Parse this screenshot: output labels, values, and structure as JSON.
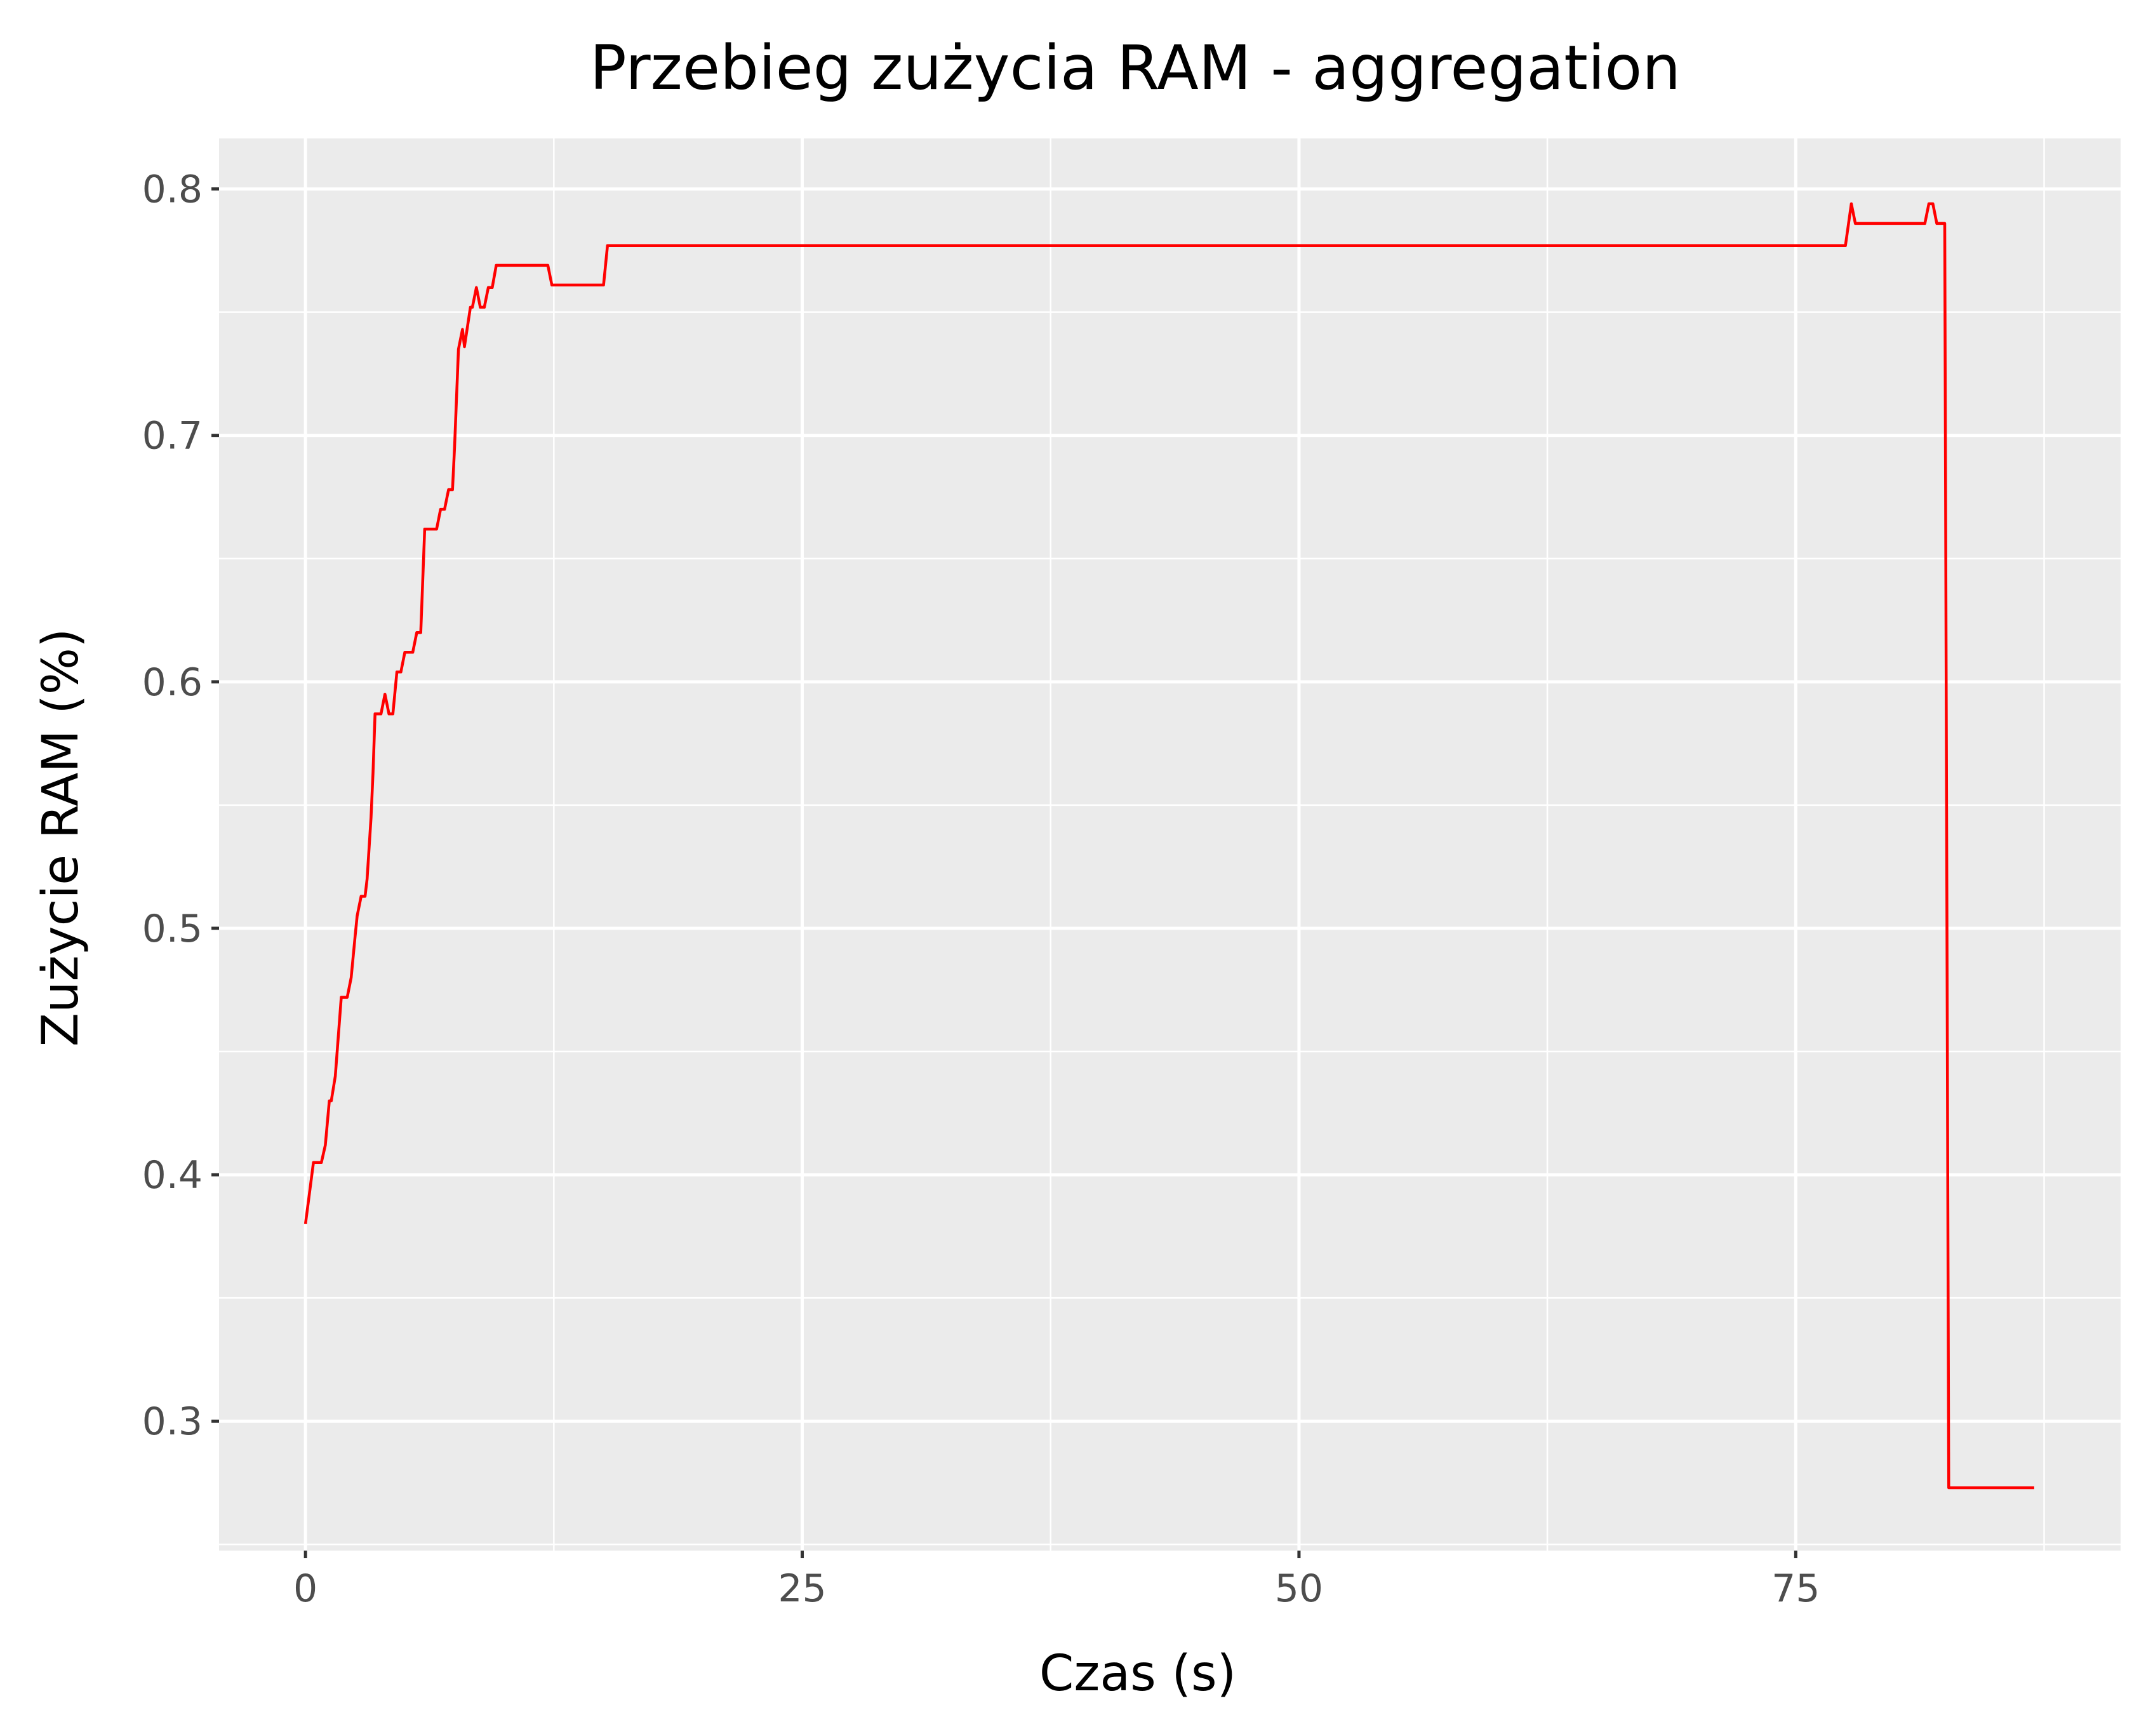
{
  "chart_data": {
    "type": "line",
    "title": "Przebieg zużycia RAM - aggregation",
    "xlabel": "Czas (s)",
    "ylabel": "Zużycie RAM (%)",
    "xlim": [
      -4.35,
      91.35
    ],
    "ylim": [
      0.2475,
      0.8205
    ],
    "x_ticks": [
      0,
      25,
      50,
      75
    ],
    "x_tick_labels": [
      "0",
      "25",
      "50",
      "75"
    ],
    "y_ticks": [
      0.3,
      0.4,
      0.5,
      0.6,
      0.7,
      0.8
    ],
    "y_tick_labels": [
      "0.3",
      "0.4",
      "0.5",
      "0.6",
      "0.7",
      "0.8"
    ],
    "grid": true,
    "background": "#ebebeb",
    "grid_color": "#ffffff",
    "series": [
      {
        "color": "#ff0000",
        "x": [
          0.0,
          0.4,
          0.8,
          1.0,
          1.2,
          1.3,
          1.5,
          1.8,
          1.9,
          2.1,
          2.3,
          2.5,
          2.6,
          2.8,
          3.0,
          3.1,
          3.3,
          3.4,
          3.5,
          3.6,
          3.8,
          4.0,
          4.2,
          4.4,
          4.6,
          4.8,
          5.0,
          5.2,
          5.4,
          5.6,
          5.8,
          6.0,
          6.2,
          6.4,
          6.6,
          6.8,
          7.0,
          7.2,
          7.4,
          7.5,
          7.7,
          7.9,
          8.0,
          8.3,
          8.4,
          8.6,
          8.8,
          9.0,
          9.2,
          9.4,
          9.6,
          11.0,
          12.2,
          12.4,
          13.0,
          14.5,
          15.0,
          15.2,
          77.5,
          77.8,
          78.0,
          80.0,
          81.5,
          81.7,
          81.9,
          82.1,
          82.5,
          82.7,
          87.0
        ],
        "y": [
          0.38,
          0.405,
          0.405,
          0.412,
          0.43,
          0.43,
          0.44,
          0.472,
          0.472,
          0.472,
          0.48,
          0.497,
          0.505,
          0.513,
          0.513,
          0.52,
          0.545,
          0.563,
          0.587,
          0.587,
          0.587,
          0.595,
          0.587,
          0.587,
          0.604,
          0.604,
          0.612,
          0.612,
          0.612,
          0.62,
          0.62,
          0.662,
          0.662,
          0.662,
          0.662,
          0.67,
          0.67,
          0.678,
          0.678,
          0.695,
          0.735,
          0.743,
          0.736,
          0.752,
          0.752,
          0.76,
          0.752,
          0.752,
          0.76,
          0.76,
          0.769,
          0.769,
          0.769,
          0.761,
          0.761,
          0.761,
          0.761,
          0.777,
          0.777,
          0.794,
          0.786,
          0.786,
          0.786,
          0.794,
          0.794,
          0.786,
          0.786,
          0.273,
          0.273
        ]
      }
    ]
  }
}
